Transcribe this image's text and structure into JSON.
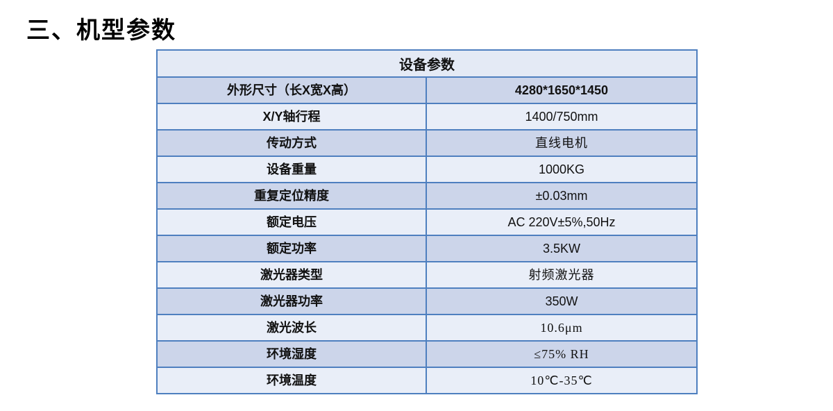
{
  "page_title": "三、机型参数",
  "table": {
    "header": "设备参数",
    "rows": [
      {
        "label": "外形尺寸（长X宽X高）",
        "value": "4280*1650*1450",
        "value_bold": true,
        "value_song": false,
        "shade": "dark"
      },
      {
        "label": "X/Y轴行程",
        "value": "1400/750mm",
        "value_bold": false,
        "value_song": false,
        "shade": "light"
      },
      {
        "label": "传动方式",
        "value": "直线电机",
        "value_bold": false,
        "value_song": true,
        "shade": "dark"
      },
      {
        "label": "设备重量",
        "value": "1000KG",
        "value_bold": false,
        "value_song": false,
        "shade": "light"
      },
      {
        "label": "重复定位精度",
        "value": "±0.03mm",
        "value_bold": false,
        "value_song": false,
        "shade": "dark"
      },
      {
        "label": "额定电压",
        "value": "AC 220V±5%,50Hz",
        "value_bold": false,
        "value_song": false,
        "shade": "light"
      },
      {
        "label": "额定功率",
        "value": "3.5KW",
        "value_bold": false,
        "value_song": false,
        "shade": "dark"
      },
      {
        "label": "激光器类型",
        "value": "射频激光器",
        "value_bold": false,
        "value_song": true,
        "shade": "light"
      },
      {
        "label": "激光器功率",
        "value": "350W",
        "value_bold": false,
        "value_song": false,
        "shade": "dark"
      },
      {
        "label": "激光波长",
        "value": "10.6μm",
        "value_bold": false,
        "value_song": true,
        "shade": "light"
      },
      {
        "label": "环境湿度",
        "value": "≤75% RH",
        "value_bold": false,
        "value_song": true,
        "shade": "dark"
      },
      {
        "label": "环境温度",
        "value": "10℃-35℃",
        "value_bold": false,
        "value_song": true,
        "shade": "light"
      }
    ]
  },
  "colors": {
    "border": "#4e7fbf",
    "row_dark": "#ccd5ea",
    "row_light": "#e9eef8",
    "header_bg": "#e4eaf5",
    "text": "#111111",
    "page_bg": "#ffffff"
  }
}
